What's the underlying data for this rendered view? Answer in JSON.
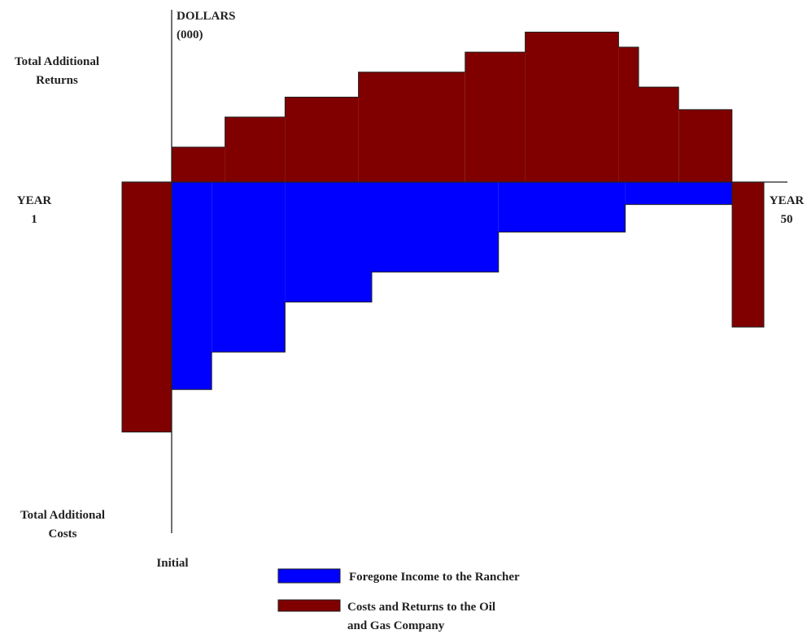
{
  "chart_data": {
    "type": "area",
    "title": "",
    "units": [
      "DOLLARS",
      "(000)"
    ],
    "upper_label": [
      "Total Additional",
      "Returns"
    ],
    "lower_label": [
      "Total Additional",
      "Costs"
    ],
    "start_label": [
      "YEAR",
      "1"
    ],
    "end_label": [
      "YEAR",
      "50"
    ],
    "initial_label": "Initial",
    "value_scale": "relative (no numeric ticks printed); returns positive, costs negative",
    "series": [
      {
        "name": "Costs and Returns to the Oil and Gas Company",
        "color": "#800000",
        "initial_cost": -50,
        "returns": [
          {
            "from": 0,
            "to": 8,
            "value": 7
          },
          {
            "from": 8,
            "to": 17,
            "value": 13
          },
          {
            "from": 17,
            "to": 28,
            "value": 17
          },
          {
            "from": 28,
            "to": 44,
            "value": 22
          },
          {
            "from": 44,
            "to": 53,
            "value": 26
          },
          {
            "from": 53,
            "to": 67,
            "value": 30
          },
          {
            "from": 67,
            "to": 70,
            "value": 27
          },
          {
            "from": 70,
            "to": 76,
            "value": 19
          },
          {
            "from": 76,
            "to": 84,
            "value": 14.5
          }
        ],
        "final_cost": -29
      },
      {
        "name": "Foregone Income to the Rancher",
        "color": "#0000ff",
        "values": [
          {
            "from": 0,
            "to": 6,
            "value": -41.5
          },
          {
            "from": 6,
            "to": 17,
            "value": -34
          },
          {
            "from": 17,
            "to": 30,
            "value": -24
          },
          {
            "from": 30,
            "to": 49,
            "value": -18
          },
          {
            "from": 49,
            "to": 68,
            "value": -10
          },
          {
            "from": 68,
            "to": 84,
            "value": -4.5
          }
        ]
      }
    ],
    "legend": [
      {
        "label": [
          "Foregone Income to the Rancher"
        ],
        "color": "#0000ff"
      },
      {
        "label": [
          "Costs and Returns to the Oil",
          "and Gas Company"
        ],
        "color": "#800000"
      }
    ],
    "legend_position": "bottom-center"
  }
}
